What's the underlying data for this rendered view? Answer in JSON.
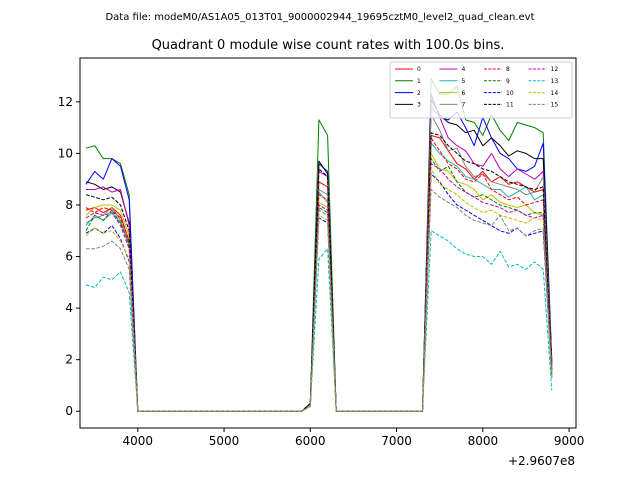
{
  "chart_data": {
    "type": "line",
    "suptitle": "Data file: modeM0/AS1A05_013T01_9000002944_19695cztM0_level2_quad_clean.evt",
    "title": "Quadrant 0 module wise count rates with 100.0s bins.",
    "xlabel": "",
    "ylabel": "",
    "x_offset_label": "+2.9607e8",
    "xlim": [
      3330,
      9080
    ],
    "ylim": [
      -0.65,
      13.7
    ],
    "xticks": [
      4000,
      5000,
      6000,
      7000,
      8000,
      9000
    ],
    "xtick_labels": [
      "4000",
      "5000",
      "6000",
      "7000",
      "8000",
      "9000"
    ],
    "yticks": [
      0,
      2,
      4,
      6,
      8,
      10,
      12
    ],
    "ytick_labels": [
      "0",
      "2",
      "4",
      "6",
      "8",
      "10",
      "12"
    ],
    "legend_position": "upper right",
    "legend_columns": 4,
    "x": [
      3400,
      3500,
      3600,
      3700,
      3800,
      3900,
      4000,
      4100,
      4200,
      4300,
      4400,
      4500,
      4600,
      4700,
      4800,
      4900,
      5000,
      5100,
      5200,
      5300,
      5400,
      5500,
      5600,
      5700,
      5800,
      5900,
      6000,
      6100,
      6200,
      6300,
      6400,
      6500,
      6600,
      6700,
      6800,
      6900,
      7000,
      7100,
      7200,
      7300,
      7400,
      7500,
      7600,
      7700,
      7800,
      7900,
      8000,
      8100,
      8200,
      8300,
      8400,
      8500,
      8600,
      8700,
      8800
    ],
    "active_segments": [
      {
        "x": [
          3400,
          3500,
          3600,
          3700,
          3800,
          3900
        ]
      },
      {
        "x": [
          6000,
          6100,
          6200
        ]
      },
      {
        "x": [
          7300,
          7400,
          7500,
          7600,
          7700,
          7800,
          7900,
          8000,
          8100,
          8200,
          8300,
          8400,
          8500,
          8600,
          8700
        ]
      }
    ],
    "series": [
      {
        "name": "0",
        "color": "#ff0000",
        "dash": "solid",
        "values": [
          7.8,
          7.9,
          7.7,
          7.9,
          7.6,
          6.6,
          0,
          0,
          0,
          0,
          0,
          0,
          0,
          0,
          0,
          0,
          0,
          0,
          0,
          0,
          0,
          0,
          0,
          0,
          0,
          0,
          0.2,
          8.9,
          8.7,
          0,
          0,
          0,
          0,
          0,
          0,
          0,
          0,
          0,
          0,
          0,
          10.7,
          10.6,
          10.1,
          9.6,
          9.4,
          9.0,
          9.3,
          8.9,
          9.1,
          8.8,
          8.9,
          8.7,
          8.5,
          8.6,
          1.6
        ]
      },
      {
        "name": "1",
        "color": "#008000",
        "dash": "solid",
        "values": [
          10.2,
          10.3,
          9.8,
          9.8,
          9.6,
          8.4,
          0,
          0,
          0,
          0,
          0,
          0,
          0,
          0,
          0,
          0,
          0,
          0,
          0,
          0,
          0,
          0,
          0,
          0,
          0,
          0,
          0.3,
          11.3,
          10.7,
          0,
          0,
          0,
          0,
          0,
          0,
          0,
          0,
          0,
          0,
          0,
          12.9,
          12.3,
          12.3,
          12.6,
          11.3,
          11.2,
          10.7,
          11.5,
          10.9,
          10.5,
          11.2,
          11.1,
          11.0,
          10.8,
          2.0
        ]
      },
      {
        "name": "2",
        "color": "#0000ff",
        "dash": "solid",
        "values": [
          8.8,
          9.3,
          9.0,
          9.8,
          9.5,
          8.2,
          0,
          0,
          0,
          0,
          0,
          0,
          0,
          0,
          0,
          0,
          0,
          0,
          0,
          0,
          0,
          0,
          0,
          0,
          0,
          0,
          0.3,
          9.6,
          9.3,
          0,
          0,
          0,
          0,
          0,
          0,
          0,
          0,
          0,
          0,
          0,
          12.3,
          11.4,
          11.3,
          11.6,
          11.0,
          10.3,
          11.4,
          10.6,
          10.0,
          9.8,
          9.4,
          9.3,
          9.5,
          10.4,
          1.8
        ]
      },
      {
        "name": "3",
        "color": "#000000",
        "dash": "solid",
        "values": [
          8.9,
          8.8,
          8.6,
          8.7,
          8.5,
          7.3,
          0,
          0,
          0,
          0,
          0,
          0,
          0,
          0,
          0,
          0,
          0,
          0,
          0,
          0,
          0,
          0,
          0,
          0,
          0,
          0,
          0.3,
          9.7,
          9.2,
          0,
          0,
          0,
          0,
          0,
          0,
          0,
          0,
          0,
          0,
          0,
          12.1,
          11.5,
          11.2,
          11.1,
          10.8,
          10.9,
          10.3,
          10.6,
          10.3,
          9.9,
          10.1,
          10.0,
          9.8,
          9.8,
          1.9
        ]
      },
      {
        "name": "4",
        "color": "#bf00bf",
        "dash": "solid",
        "values": [
          8.6,
          8.6,
          8.7,
          8.5,
          8.6,
          7.2,
          0,
          0,
          0,
          0,
          0,
          0,
          0,
          0,
          0,
          0,
          0,
          0,
          0,
          0,
          0,
          0,
          0,
          0,
          0,
          0,
          0.3,
          9.3,
          9.1,
          0,
          0,
          0,
          0,
          0,
          0,
          0,
          0,
          0,
          0,
          0,
          11.8,
          11.4,
          10.6,
          10.3,
          10.1,
          9.6,
          9.5,
          10.0,
          9.4,
          9.1,
          9.4,
          9.2,
          9.0,
          9.3,
          1.8
        ]
      },
      {
        "name": "5",
        "color": "#20b2aa",
        "dash": "solid",
        "values": [
          7.2,
          7.6,
          7.4,
          7.7,
          7.3,
          6.5,
          0,
          0,
          0,
          0,
          0,
          0,
          0,
          0,
          0,
          0,
          0,
          0,
          0,
          0,
          0,
          0,
          0,
          0,
          0,
          0,
          0.2,
          8.5,
          8.1,
          0,
          0,
          0,
          0,
          0,
          0,
          0,
          0,
          0,
          0,
          0,
          10.4,
          10.0,
          9.7,
          9.5,
          9.1,
          9.0,
          8.8,
          8.6,
          8.6,
          8.3,
          8.5,
          8.7,
          8.2,
          8.4,
          1.5
        ]
      },
      {
        "name": "6",
        "color": "#bfbf00",
        "dash": "solid",
        "values": [
          7.6,
          7.9,
          8.0,
          8.0,
          7.8,
          6.8,
          0,
          0,
          0,
          0,
          0,
          0,
          0,
          0,
          0,
          0,
          0,
          0,
          0,
          0,
          0,
          0,
          0,
          0,
          0,
          0,
          0.2,
          8.1,
          7.9,
          0,
          0,
          0,
          0,
          0,
          0,
          0,
          0,
          0,
          0,
          0,
          10.0,
          9.4,
          9.3,
          8.9,
          8.8,
          8.6,
          8.2,
          8.4,
          8.1,
          8.0,
          7.9,
          8.0,
          7.7,
          7.6,
          1.4
        ]
      },
      {
        "name": "7",
        "color": "#808080",
        "dash": "solid",
        "values": [
          7.3,
          7.5,
          7.6,
          7.9,
          7.4,
          6.4,
          0,
          0,
          0,
          0,
          0,
          0,
          0,
          0,
          0,
          0,
          0,
          0,
          0,
          0,
          0,
          0,
          0,
          0,
          0,
          0,
          0.2,
          8.6,
          8.4,
          0,
          0,
          0,
          0,
          0,
          0,
          0,
          0,
          0,
          0,
          0,
          11.5,
          10.9,
          10.1,
          10.2,
          9.5,
          9.1,
          9.2,
          8.9,
          8.8,
          8.7,
          8.6,
          8.4,
          8.5,
          9.1,
          1.7
        ]
      },
      {
        "name": "8",
        "color": "#ff0000",
        "dash": "dashed",
        "values": [
          7.9,
          7.7,
          7.9,
          7.8,
          7.5,
          6.6,
          0,
          0,
          0,
          0,
          0,
          0,
          0,
          0,
          0,
          0,
          0,
          0,
          0,
          0,
          0,
          0,
          0,
          0,
          0,
          0,
          0.2,
          8.4,
          8.2,
          0,
          0,
          0,
          0,
          0,
          0,
          0,
          0,
          0,
          0,
          0,
          10.6,
          10.1,
          9.6,
          9.4,
          9.0,
          8.9,
          9.2,
          8.6,
          8.4,
          8.2,
          8.3,
          8.0,
          8.1,
          8.2,
          1.5
        ]
      },
      {
        "name": "9",
        "color": "#008000",
        "dash": "dashed",
        "values": [
          7.0,
          7.6,
          7.4,
          7.8,
          7.3,
          6.5,
          0,
          0,
          0,
          0,
          0,
          0,
          0,
          0,
          0,
          0,
          0,
          0,
          0,
          0,
          0,
          0,
          0,
          0,
          0,
          0,
          0.2,
          7.9,
          7.7,
          0,
          0,
          0,
          0,
          0,
          0,
          0,
          0,
          0,
          0,
          0,
          9.8,
          9.3,
          9.5,
          8.9,
          8.5,
          8.3,
          8.4,
          8.2,
          8.0,
          7.9,
          7.8,
          7.6,
          7.7,
          7.7,
          1.3
        ]
      },
      {
        "name": "10",
        "color": "#0000ff",
        "dash": "dashed",
        "values": [
          6.9,
          7.1,
          6.9,
          7.2,
          6.7,
          5.8,
          0,
          0,
          0,
          0,
          0,
          0,
          0,
          0,
          0,
          0,
          0,
          0,
          0,
          0,
          0,
          0,
          0,
          0,
          0,
          0,
          0.2,
          7.5,
          7.3,
          0,
          0,
          0,
          0,
          0,
          0,
          0,
          0,
          0,
          0,
          0,
          9.2,
          8.9,
          8.4,
          8.0,
          7.8,
          7.6,
          7.4,
          7.2,
          7.0,
          6.9,
          7.1,
          6.8,
          6.9,
          7.0,
          1.3
        ]
      },
      {
        "name": "11",
        "color": "#000000",
        "dash": "dashed",
        "values": [
          8.4,
          8.3,
          8.2,
          8.3,
          8.0,
          7.0,
          0,
          0,
          0,
          0,
          0,
          0,
          0,
          0,
          0,
          0,
          0,
          0,
          0,
          0,
          0,
          0,
          0,
          0,
          0,
          0,
          0.3,
          9.4,
          9.1,
          0,
          0,
          0,
          0,
          0,
          0,
          0,
          0,
          0,
          0,
          0,
          10.8,
          10.7,
          10.3,
          10.0,
          9.7,
          9.6,
          9.4,
          9.3,
          9.1,
          8.9,
          8.8,
          8.7,
          8.6,
          8.7,
          1.6
        ]
      },
      {
        "name": "12",
        "color": "#bf00bf",
        "dash": "dashed",
        "values": [
          7.5,
          7.7,
          7.6,
          7.7,
          7.2,
          6.3,
          0,
          0,
          0,
          0,
          0,
          0,
          0,
          0,
          0,
          0,
          0,
          0,
          0,
          0,
          0,
          0,
          0,
          0,
          0,
          0,
          0.2,
          8.0,
          7.8,
          0,
          0,
          0,
          0,
          0,
          0,
          0,
          0,
          0,
          0,
          0,
          9.6,
          9.4,
          9.0,
          8.7,
          8.5,
          8.3,
          8.1,
          8.0,
          7.9,
          7.7,
          7.8,
          7.6,
          7.5,
          7.6,
          1.4
        ]
      },
      {
        "name": "13",
        "color": "#00bfbf",
        "dash": "dashed",
        "values": [
          4.9,
          4.8,
          5.2,
          5.1,
          5.4,
          4.6,
          0,
          0,
          0,
          0,
          0,
          0,
          0,
          0,
          0,
          0,
          0,
          0,
          0,
          0,
          0,
          0,
          0,
          0,
          0,
          0,
          0.2,
          5.9,
          6.3,
          0,
          0,
          0,
          0,
          0,
          0,
          0,
          0,
          0,
          0,
          0,
          7.0,
          6.8,
          6.6,
          6.3,
          6.1,
          6.0,
          6.0,
          5.7,
          6.2,
          5.6,
          5.7,
          5.5,
          5.8,
          5.5,
          0.8
        ]
      },
      {
        "name": "14",
        "color": "#bfbf00",
        "dash": "dashed",
        "values": [
          6.8,
          7.1,
          6.9,
          7.0,
          6.6,
          5.9,
          0,
          0,
          0,
          0,
          0,
          0,
          0,
          0,
          0,
          0,
          0,
          0,
          0,
          0,
          0,
          0,
          0,
          0,
          0,
          0,
          0.2,
          7.6,
          7.4,
          0,
          0,
          0,
          0,
          0,
          0,
          0,
          0,
          0,
          0,
          0,
          9.4,
          8.8,
          8.6,
          8.4,
          8.1,
          7.9,
          7.7,
          7.8,
          7.6,
          7.5,
          7.4,
          7.3,
          7.5,
          7.4,
          1.3
        ]
      },
      {
        "name": "15",
        "color": "#808080",
        "dash": "dashed",
        "values": [
          6.3,
          6.3,
          6.4,
          6.6,
          6.3,
          5.5,
          0,
          0,
          0,
          0,
          0,
          0,
          0,
          0,
          0,
          0,
          0,
          0,
          0,
          0,
          0,
          0,
          0,
          0,
          0,
          0,
          0.2,
          7.8,
          7.6,
          0,
          0,
          0,
          0,
          0,
          0,
          0,
          0,
          0,
          0,
          0,
          8.6,
          8.3,
          8.1,
          7.9,
          7.6,
          7.4,
          7.3,
          7.2,
          7.6,
          7.0,
          7.1,
          6.8,
          7.0,
          7.1,
          1.4
        ]
      }
    ]
  }
}
